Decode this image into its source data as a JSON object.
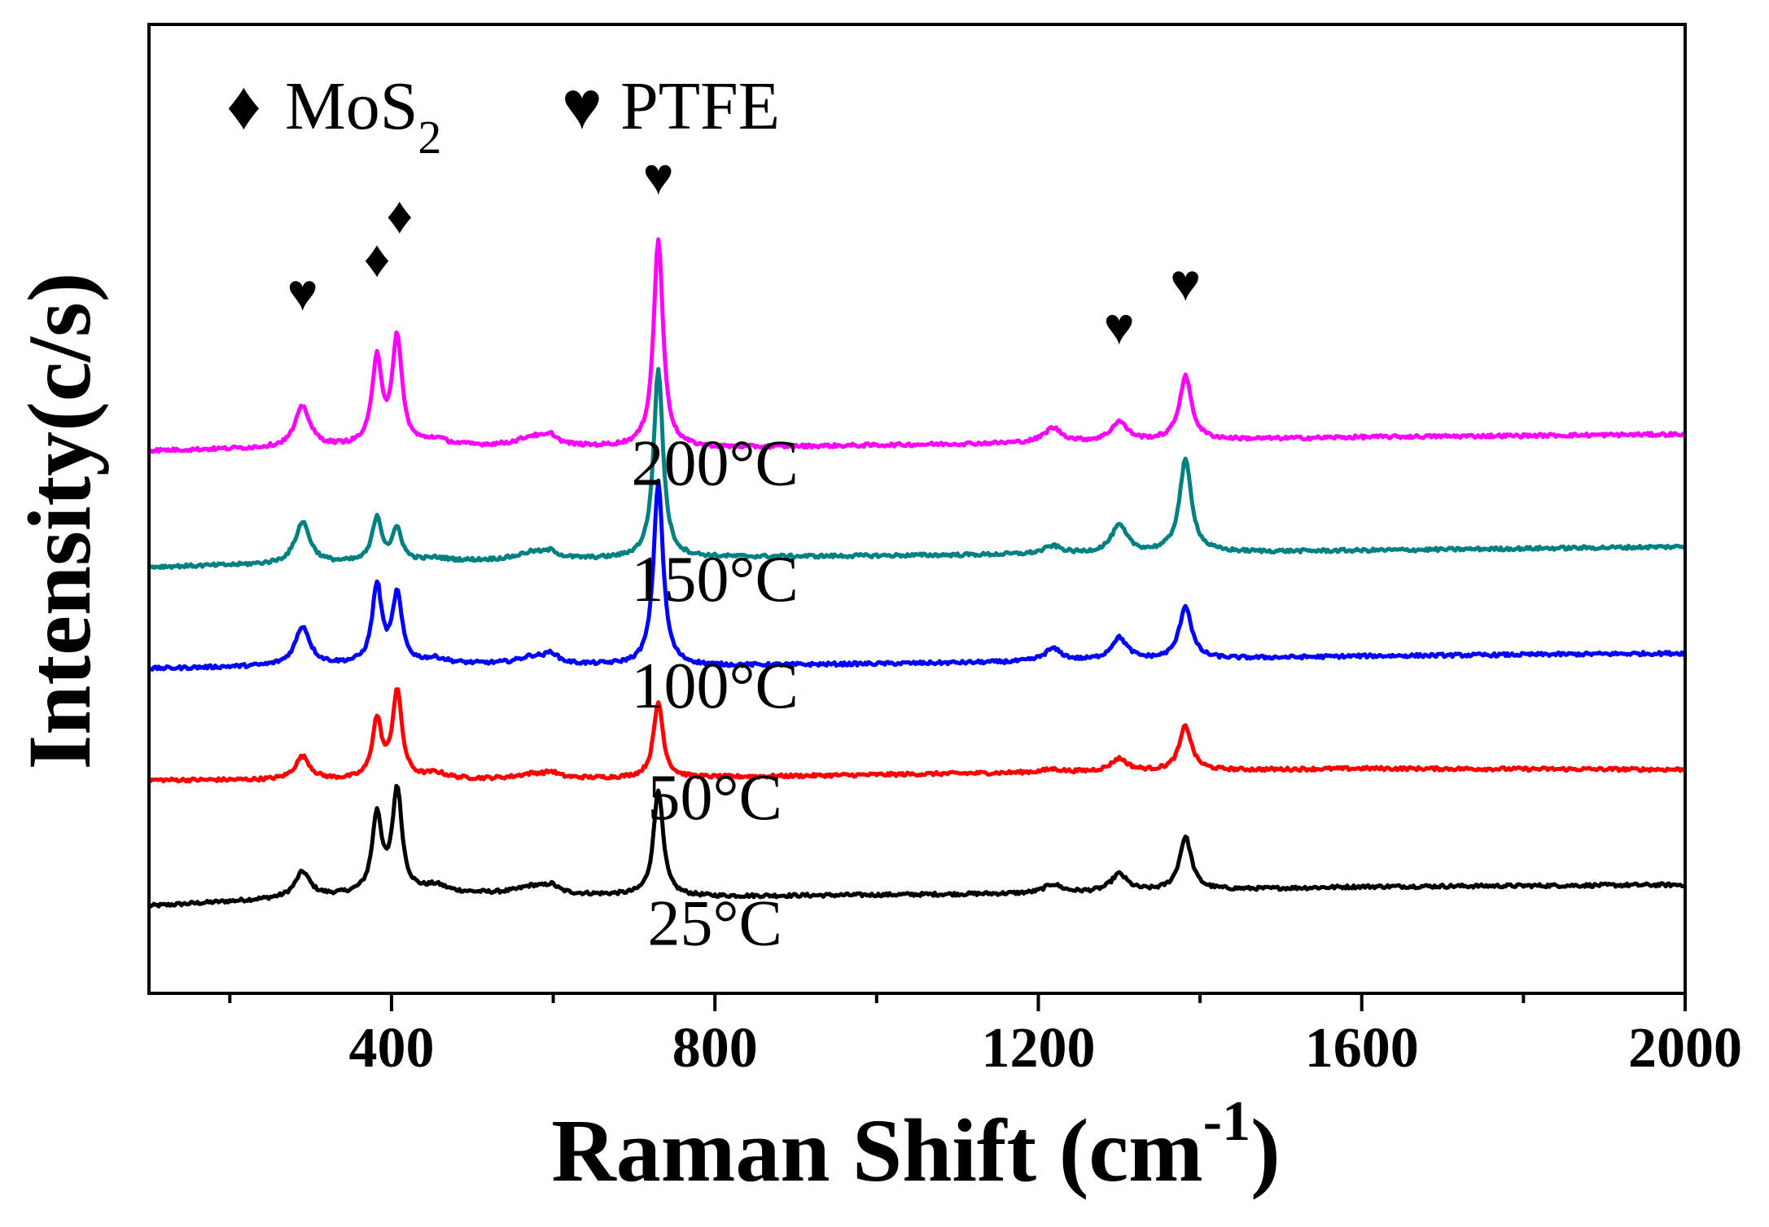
{
  "chart_data": {
    "type": "line",
    "xlabel": "Raman Shift (cm",
    "xlabel_sup": "-1",
    "xlabel_end": ")",
    "ylabel": "Intensity(c/s)",
    "xlim": [
      100,
      2000
    ],
    "xticks": [
      400,
      800,
      1200,
      1600,
      2000
    ],
    "xticks_minor": [
      200,
      600,
      1000,
      1400,
      1800
    ],
    "yticks_shown": false,
    "grid": false,
    "legend": {
      "placement": "top-left",
      "entries": [
        {
          "symbol": "♦",
          "label": "MoS",
          "sub": "2"
        },
        {
          "symbol": "♥",
          "label": "PTFE"
        }
      ]
    },
    "ylim": [
      0,
      100
    ],
    "peak_markers": [
      {
        "symbol": "♥",
        "x": 290,
        "y": 70.5
      },
      {
        "symbol": "♦",
        "x": 382,
        "y": 74.0
      },
      {
        "symbol": "♦",
        "x": 410,
        "y": 78.5
      },
      {
        "symbol": "♥",
        "x": 730,
        "y": 82.5
      },
      {
        "symbol": "♥",
        "x": 1300,
        "y": 67.0
      },
      {
        "symbol": "♥",
        "x": 1382,
        "y": 71.5
      }
    ],
    "peaks_common": [
      {
        "pos": 290,
        "w": 11
      },
      {
        "pos": 382,
        "w": 7
      },
      {
        "pos": 407,
        "w": 7
      },
      {
        "pos": 455,
        "w": 16
      },
      {
        "pos": 575,
        "w": 22
      },
      {
        "pos": 598,
        "w": 9
      },
      {
        "pos": 730,
        "w": 7
      },
      {
        "pos": 1218,
        "w": 13
      },
      {
        "pos": 1300,
        "w": 12
      },
      {
        "pos": 1382,
        "w": 9
      }
    ],
    "series": [
      {
        "name": "25°C",
        "color": "#000000",
        "baseline": [
          [
            100,
            9.0
          ],
          [
            400,
            10.4
          ],
          [
            800,
            10.0
          ],
          [
            1200,
            10.3
          ],
          [
            1600,
            11.0
          ],
          [
            2000,
            11.2
          ]
        ],
        "amplitudes": [
          2.6,
          8.0,
          10.5,
          0.7,
          0.8,
          0.7,
          11.0,
          0.9,
          1.8,
          5.5
        ],
        "label_pos": [
          800,
          5.0
        ]
      },
      {
        "name": "50°C",
        "color": "#ff0000",
        "baseline": [
          [
            100,
            22.0
          ],
          [
            400,
            22.0
          ],
          [
            800,
            22.3
          ],
          [
            1200,
            22.8
          ],
          [
            1600,
            23.2
          ],
          [
            2000,
            23.1
          ]
        ],
        "amplitudes": [
          2.4,
          6.0,
          9.0,
          0.6,
          0.5,
          0.5,
          7.8,
          0.3,
          1.3,
          4.6
        ],
        "label_pos": [
          800,
          18.0
        ]
      },
      {
        "name": "100°C",
        "color": "#0000ff",
        "baseline": [
          [
            100,
            33.5
          ],
          [
            400,
            34.0
          ],
          [
            800,
            33.8
          ],
          [
            1200,
            34.2
          ],
          [
            1600,
            34.8
          ],
          [
            2000,
            35.1
          ]
        ],
        "amplitudes": [
          4.0,
          8.0,
          7.0,
          0.5,
          0.8,
          0.9,
          19.0,
          1.3,
          2.3,
          5.5
        ],
        "label_pos": [
          800,
          29.5
        ]
      },
      {
        "name": "150°C",
        "color": "#008080",
        "baseline": [
          [
            100,
            44.0
          ],
          [
            400,
            44.5
          ],
          [
            800,
            45.0
          ],
          [
            1200,
            45.3
          ],
          [
            1600,
            45.7
          ],
          [
            2000,
            46.1
          ]
        ],
        "amplitudes": [
          4.3,
          4.6,
          3.3,
          0.3,
          0.8,
          0.6,
          19.5,
          0.8,
          2.8,
          9.5
        ],
        "label_pos": [
          800,
          40.5
        ]
      },
      {
        "name": "200°C",
        "color": "#ff00ff",
        "baseline": [
          [
            100,
            56.0
          ],
          [
            400,
            56.5
          ],
          [
            800,
            56.3
          ],
          [
            1200,
            56.8
          ],
          [
            1600,
            57.4
          ],
          [
            2000,
            57.7
          ]
        ],
        "amplitudes": [
          4.2,
          9.0,
          11.0,
          0.6,
          1.0,
          0.8,
          21.5,
          1.5,
          2.0,
          6.6
        ],
        "label_pos": [
          800,
          52.5
        ]
      }
    ]
  }
}
